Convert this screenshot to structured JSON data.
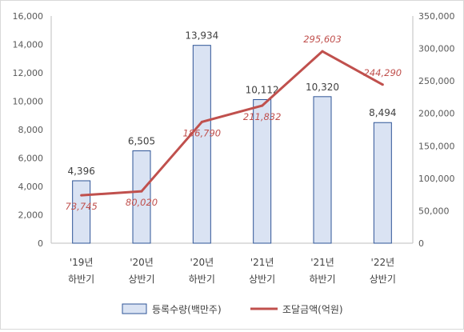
{
  "chart_data": {
    "type": "bar",
    "title": "",
    "xlabel": "",
    "ylabel": "",
    "categories": [
      [
        "'19년",
        "하반기"
      ],
      [
        "'20년",
        "상반기"
      ],
      [
        "'20년",
        "하반기"
      ],
      [
        "'21년",
        "상반기"
      ],
      [
        "'21년",
        "하반기"
      ],
      [
        "'22년",
        "상반기"
      ]
    ],
    "series": [
      {
        "name": "등록수량(백만주)",
        "type": "bar",
        "axis": "left",
        "color": "#dae3f3",
        "edge_color": "#2f5597",
        "values": [
          4396,
          6505,
          13934,
          10112,
          10320,
          8494
        ],
        "labels": [
          "4,396",
          "6,505",
          "13,934",
          "10,112",
          "10,320",
          "8,494"
        ]
      },
      {
        "name": "조달금액(억원)",
        "type": "line",
        "axis": "right",
        "color": "#c0504d",
        "values": [
          73745,
          80020,
          186790,
          211832,
          295603,
          244290
        ],
        "labels": [
          "73,745",
          "80,020",
          "186,790",
          "211,832",
          "295,603",
          "244,290"
        ]
      }
    ],
    "ylim": [
      0,
      16000
    ],
    "y2lim": [
      0,
      350000
    ],
    "left_ticks": [
      "0",
      "2,000",
      "4,000",
      "6,000",
      "8,000",
      "10,000",
      "12,000",
      "14,000",
      "16,000"
    ],
    "right_ticks": [
      "0",
      "50,000",
      "100,000",
      "150,000",
      "200,000",
      "250,000",
      "300,000",
      "350,000"
    ],
    "grid": false,
    "legend_position": "bottom"
  }
}
